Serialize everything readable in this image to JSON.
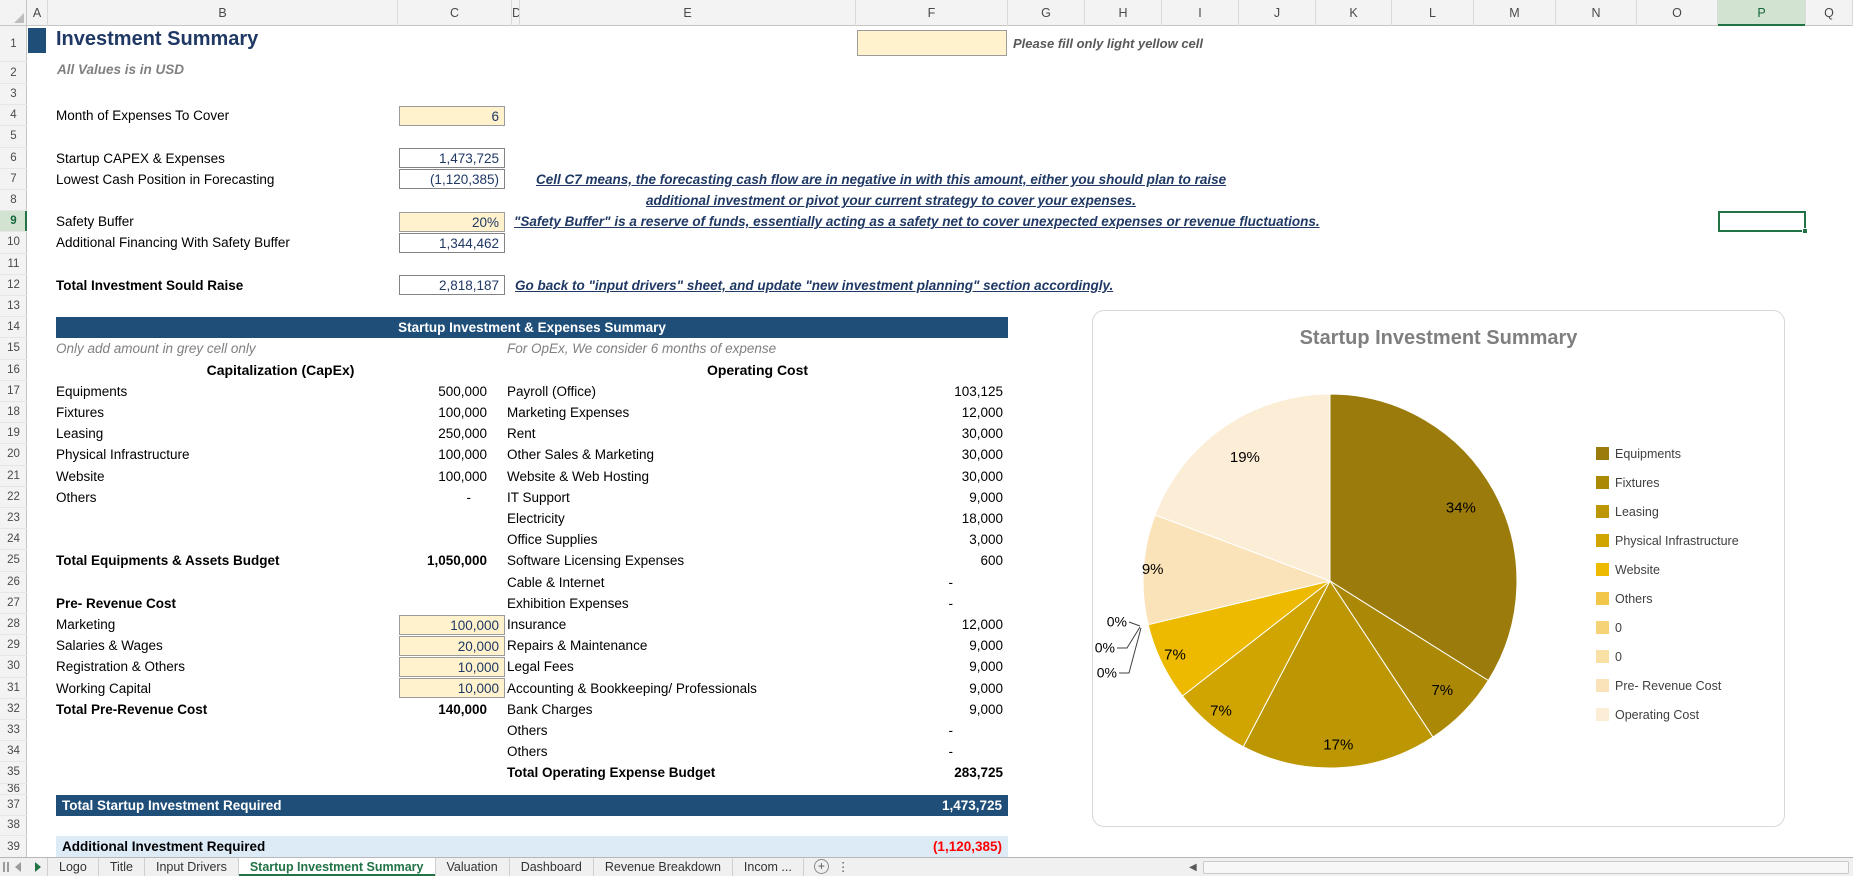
{
  "app": {
    "columns": [
      "A",
      "B",
      "C",
      "D",
      "E",
      "F",
      "G",
      "H",
      "I",
      "J",
      "K",
      "L",
      "M",
      "N",
      "O",
      "P",
      "Q"
    ],
    "rows_visible": 39,
    "selection": "P9",
    "accent_green": "#217346",
    "banner_navy": "#1F4E79",
    "input_yellow": "#FFF2CC"
  },
  "header": {
    "title": "Investment Summary",
    "subtitle": "All Values is in USD",
    "fill_note": "Please fill only light yellow cell"
  },
  "inputs": [
    {
      "row": 4,
      "label": "Month of Expenses To Cover",
      "value": "6",
      "style": "yellow",
      "bold": false
    },
    {
      "row": 6,
      "label": "Startup CAPEX & Expenses",
      "value": "1,473,725",
      "style": "plain",
      "bold": false
    },
    {
      "row": 7,
      "label": "Lowest Cash Position in Forecasting",
      "value": "(1,120,385)",
      "style": "plain",
      "bold": false
    },
    {
      "row": 9,
      "label": "Safety Buffer",
      "value": "20%",
      "style": "yellow",
      "bold": false
    },
    {
      "row": 10,
      "label": "Additional Financing With Safety Buffer",
      "value": "1,344,462",
      "style": "plain",
      "bold": false
    },
    {
      "row": 12,
      "label": "Total Investment Sould Raise",
      "value": "2,818,187",
      "style": "plain",
      "bold": true
    }
  ],
  "notes": {
    "c7_line1": "Cell C7 means, the forecasting cash flow are in negative in with this amount, either you should plan to raise",
    "c7_line2": "additional investment or pivot your current strategy to cover your expenses.",
    "safety": "\"Safety Buffer\" is a reserve of funds, essentially acting as a safety net to cover unexpected expenses or revenue fluctuations.",
    "goback": "Go back to \"input drivers\" sheet, and update \"new investment planning\" section accordingly."
  },
  "summary_table": {
    "banner": "Startup Investment & Expenses Summary",
    "left_hint": "Only add amount in grey cell only",
    "right_hint": "For OpEx, We consider 6 months of expense",
    "capex": {
      "header": "Capitalization (CapEx)",
      "items": [
        {
          "row": 17,
          "label": "Equipments",
          "value": "500,000"
        },
        {
          "row": 18,
          "label": "Fixtures",
          "value": "100,000"
        },
        {
          "row": 19,
          "label": "Leasing",
          "value": "250,000"
        },
        {
          "row": 20,
          "label": "Physical Infrastructure",
          "value": "100,000"
        },
        {
          "row": 21,
          "label": "Website",
          "value": "100,000"
        },
        {
          "row": 22,
          "label": "Others",
          "value": "-"
        }
      ],
      "total": {
        "row": 25,
        "label": "Total Equipments & Assets Budget",
        "value": "1,050,000"
      }
    },
    "prerevenue": {
      "header": "Pre- Revenue Cost",
      "header_row": 27,
      "items": [
        {
          "row": 28,
          "label": "Marketing",
          "value": "100,000"
        },
        {
          "row": 29,
          "label": "Salaries & Wages",
          "value": "20,000"
        },
        {
          "row": 30,
          "label": "Registration & Others",
          "value": "10,000"
        },
        {
          "row": 31,
          "label": "Working Capital",
          "value": "10,000"
        }
      ],
      "total": {
        "row": 32,
        "label": "Total Pre-Revenue Cost",
        "value": "140,000"
      }
    },
    "opex": {
      "header": "Operating Cost",
      "items": [
        {
          "row": 17,
          "label": "Payroll (Office)",
          "value": "103,125"
        },
        {
          "row": 18,
          "label": "Marketing Expenses",
          "value": "12,000"
        },
        {
          "row": 19,
          "label": "Rent",
          "value": "30,000"
        },
        {
          "row": 20,
          "label": "Other Sales & Marketing",
          "value": "30,000"
        },
        {
          "row": 21,
          "label": "Website & Web Hosting",
          "value": "30,000"
        },
        {
          "row": 22,
          "label": "IT Support",
          "value": "9,000"
        },
        {
          "row": 23,
          "label": "Electricity",
          "value": "18,000"
        },
        {
          "row": 24,
          "label": "Office Supplies",
          "value": "3,000"
        },
        {
          "row": 25,
          "label": "Software Licensing Expenses",
          "value": "600"
        },
        {
          "row": 26,
          "label": "Cable & Internet",
          "value": "-"
        },
        {
          "row": 27,
          "label": "Exhibition Expenses",
          "value": "-"
        },
        {
          "row": 28,
          "label": "Insurance",
          "value": "12,000"
        },
        {
          "row": 29,
          "label": "Repairs & Maintenance",
          "value": "9,000"
        },
        {
          "row": 30,
          "label": "Legal Fees",
          "value": "9,000"
        },
        {
          "row": 31,
          "label": "Accounting & Bookkeeping/ Professionals",
          "value": "9,000"
        },
        {
          "row": 32,
          "label": "Bank Charges",
          "value": "9,000"
        },
        {
          "row": 33,
          "label": "Others",
          "value": "-"
        },
        {
          "row": 34,
          "label": "Others",
          "value": "-"
        }
      ],
      "total": {
        "row": 35,
        "label": "Total Operating Expense Budget",
        "value": "283,725"
      }
    },
    "total_row": {
      "row": 37,
      "label": "Total Startup Investment Required",
      "value": "1,473,725"
    },
    "additional_row": {
      "row": 39,
      "label": "Additional Investment Required",
      "value": "(1,120,385)"
    }
  },
  "chart_data": {
    "type": "pie",
    "title": "Startup Investment Summary",
    "labels": [
      "Equipments",
      "Fixtures",
      "Leasing",
      "Physical Infrastructure",
      "Website",
      "Others",
      "0",
      "0",
      "Pre- Revenue Cost",
      "Operating Cost"
    ],
    "values": [
      500000,
      100000,
      250000,
      100000,
      100000,
      0,
      0,
      0,
      140000,
      283725
    ],
    "percent_labels": [
      "34%",
      "7%",
      "17%",
      "7%",
      "7%",
      "0%",
      "0%",
      "0%",
      "9%",
      "19%"
    ],
    "colors": [
      "#9A7B0B",
      "#AB8806",
      "#BD9603",
      "#D0A501",
      "#EDBA00",
      "#F2C648",
      "#F5D376",
      "#F9E1A6",
      "#FBE3B9",
      "#FCEDD6"
    ],
    "legend_position": "right",
    "start_angle_deg": 0,
    "direction": "clockwise"
  },
  "tabs": {
    "items": [
      "Logo",
      "Title",
      "Input Drivers",
      "Startup Investment Summary",
      "Valuation",
      "Dashboard",
      "Revenue Breakdown",
      "Incom ..."
    ],
    "active": "Startup Investment Summary"
  }
}
